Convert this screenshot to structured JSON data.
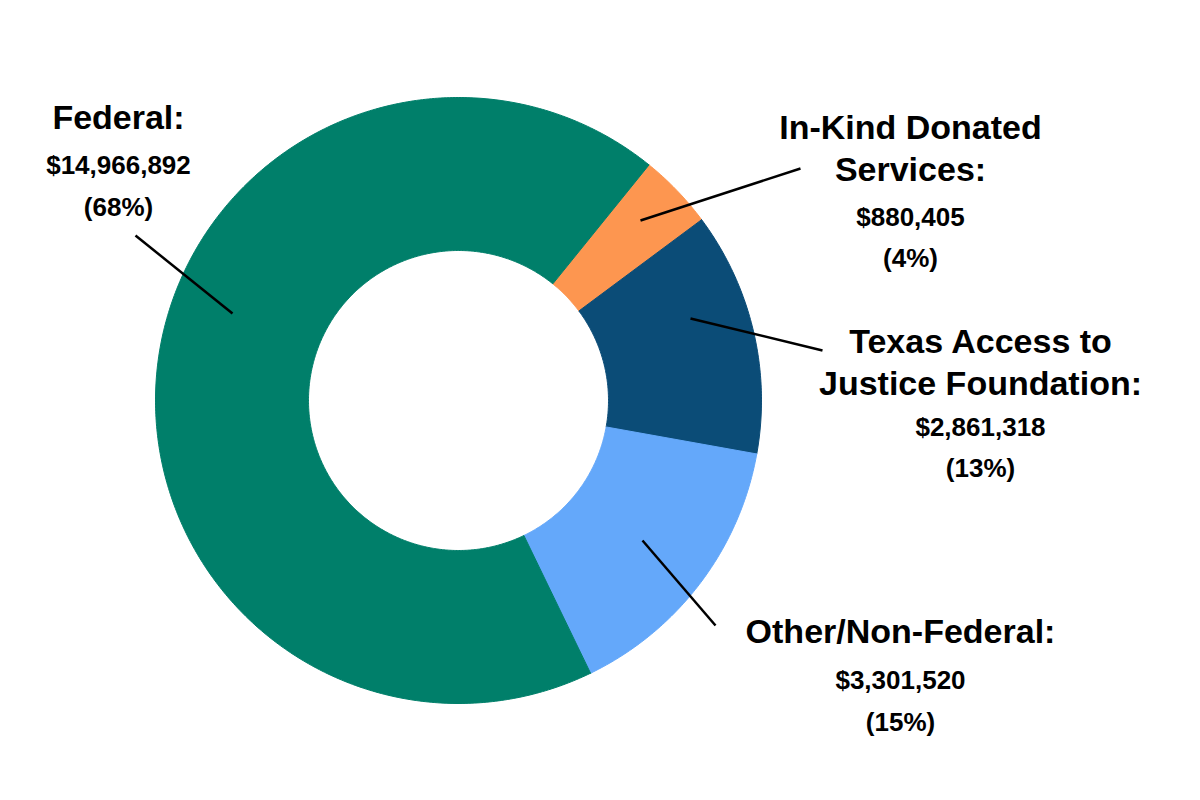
{
  "chart_data": {
    "type": "donut",
    "categories": [
      "In-Kind Donated\nServices:",
      "Texas Access to\nJustice Foundation:",
      "Other/Non-Federal:",
      "Federal:"
    ],
    "values": [
      880405,
      2861318,
      3301520,
      14966892
    ],
    "value_labels": [
      "$880,405",
      "$2,861,318",
      "$3,301,520",
      "$14,966,892"
    ],
    "percentages": [
      4,
      13,
      15,
      68
    ],
    "percentage_labels": [
      "(4%)",
      "(13%)",
      "(15%)",
      "(68%)"
    ],
    "colors": [
      "#fd9650",
      "#0b4c77",
      "#64a8fa",
      "#007f6a"
    ],
    "data_labels": true
  }
}
